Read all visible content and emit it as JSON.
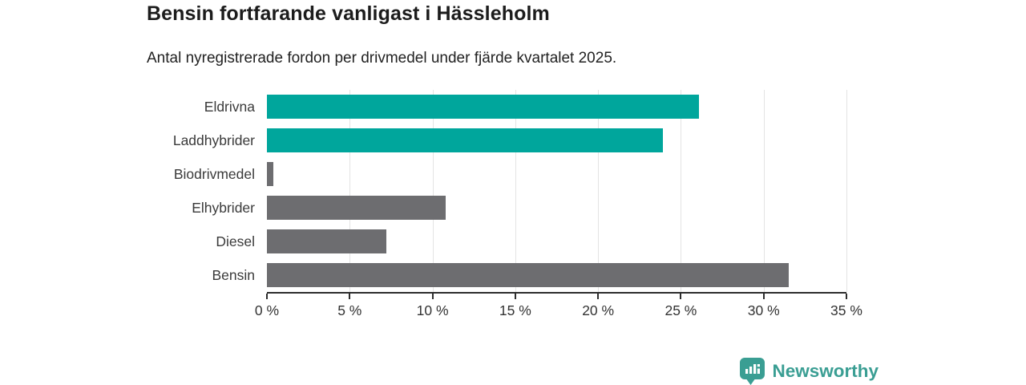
{
  "header": {
    "title": "Bensin fortfarande vanligast i Hässleholm",
    "subtitle": "Antal nyregistrerade fordon per drivmedel under fjärde kvartalet 2025."
  },
  "chart_data": {
    "type": "bar",
    "orientation": "horizontal",
    "title": "Bensin fortfarande vanligast i Hässleholm",
    "subtitle": "Antal nyregistrerade fordon per drivmedel under fjärde kvartalet 2025.",
    "categories": [
      "Eldrivna",
      "Laddhybrider",
      "Biodrivmedel",
      "Elhybrider",
      "Diesel",
      "Bensin"
    ],
    "values": [
      26.1,
      23.9,
      0.4,
      10.8,
      7.2,
      31.5
    ],
    "unit": "%",
    "bar_colors": [
      "#00a69c",
      "#00a69c",
      "#6d6d70",
      "#6d6d70",
      "#6d6d70",
      "#6d6d70"
    ],
    "xlim": [
      0,
      35
    ],
    "xticks": [
      0,
      5,
      10,
      15,
      20,
      25,
      30,
      35
    ],
    "xtick_labels": [
      "0 %",
      "5 %",
      "10 %",
      "15 %",
      "20 %",
      "25 %",
      "30 %",
      "35 %"
    ],
    "grid": "vertical-gridlines-on",
    "legend": "none"
  },
  "colors": {
    "accent_teal": "#00a69c",
    "neutral_gray": "#6d6d70",
    "brand_teal": "#3a9e93",
    "axis": "#2d2d2d",
    "gridline": "#e4e4e4"
  },
  "footer": {
    "brand": "Newsworthy"
  }
}
